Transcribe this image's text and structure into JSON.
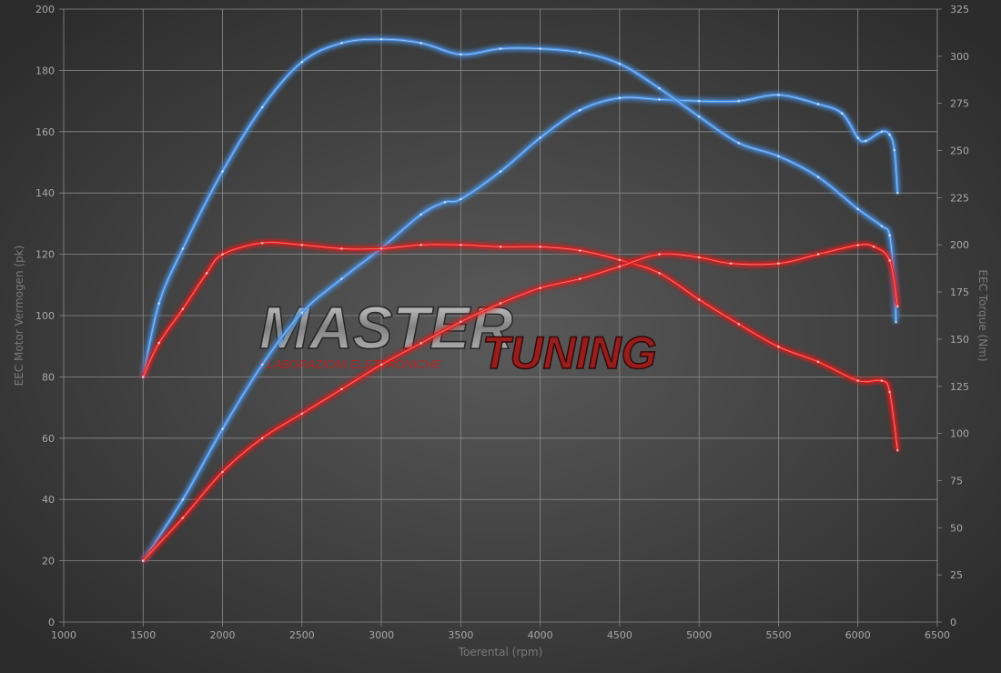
{
  "chart_data": {
    "type": "line",
    "title": "",
    "xlabel": "Toerental (rpm)",
    "ylabel_left": "EEC Motor Vermogen (pk)",
    "ylabel_right": "EEC Torque (Nm)",
    "xlim": [
      1000,
      6500
    ],
    "xticks": [
      1000,
      1500,
      2000,
      2500,
      3000,
      3500,
      4000,
      4500,
      5000,
      5500,
      6000,
      6500
    ],
    "ylim_left": [
      0,
      200
    ],
    "yticks_left": [
      0,
      20,
      40,
      60,
      80,
      100,
      120,
      140,
      160,
      180,
      200
    ],
    "ylim_right": [
      0,
      325
    ],
    "yticks_right": [
      0,
      25,
      50,
      75,
      100,
      125,
      150,
      175,
      200,
      225,
      250,
      275,
      300,
      325
    ],
    "grid": true,
    "colors": {
      "tuned": "#4a8fe0",
      "stock": "#e02020"
    },
    "series": [
      {
        "axis": "left",
        "color_key": "tuned",
        "x": [
          1500,
          1750,
          2000,
          2250,
          2500,
          2750,
          3000,
          3250,
          3400,
          3500,
          3750,
          4000,
          4250,
          4500,
          4750,
          5000,
          5250,
          5500,
          5750,
          5900,
          6000,
          6050,
          6150,
          6200,
          6230,
          6250
        ],
        "y": [
          20,
          40,
          63,
          84,
          101,
          112,
          122,
          133,
          137,
          138,
          147,
          158,
          167,
          171,
          170.5,
          170,
          170,
          172,
          169,
          166,
          158,
          157,
          160,
          159,
          154,
          140
        ]
      },
      {
        "axis": "right",
        "color_key": "tuned",
        "x": [
          1500,
          1600,
          1750,
          2000,
          2250,
          2500,
          2750,
          3000,
          3250,
          3500,
          3750,
          4000,
          4250,
          4500,
          4750,
          5000,
          5250,
          5500,
          5750,
          6000,
          6150,
          6200,
          6230,
          6240
        ],
        "y": [
          130,
          169,
          198,
          239,
          273,
          297,
          307,
          309,
          307,
          301,
          304,
          304,
          302,
          296,
          283,
          268,
          254,
          247,
          236,
          219,
          210,
          205,
          179,
          159
        ]
      },
      {
        "axis": "right",
        "color_key": "stock",
        "x": [
          1500,
          1600,
          1750,
          1900,
          2000,
          2250,
          2500,
          2750,
          3000,
          3250,
          3500,
          3750,
          4000,
          4250,
          4500,
          4750,
          5000,
          5250,
          5500,
          5750,
          6000,
          6150,
          6200,
          6250
        ],
        "y": [
          130,
          148,
          166,
          185,
          195,
          201,
          200,
          198,
          198,
          200,
          200,
          199,
          199,
          197,
          192,
          185,
          171,
          158,
          146,
          138,
          128,
          128,
          122,
          91
        ]
      },
      {
        "axis": "left",
        "color_key": "stock",
        "x": [
          1500,
          1750,
          2000,
          2250,
          2500,
          2750,
          3000,
          3250,
          3500,
          3750,
          4000,
          4250,
          4500,
          4750,
          5000,
          5200,
          5500,
          5750,
          6000,
          6100,
          6200,
          6250
        ],
        "y": [
          20,
          34,
          49,
          60,
          68,
          76,
          84,
          91,
          98,
          104,
          109,
          112,
          116,
          120,
          119,
          117,
          117,
          120,
          123,
          122.5,
          118,
          103
        ]
      }
    ]
  },
  "watermark": {
    "line1": "MASTER",
    "line2": "TUNING",
    "subtitle": "ELABORAZIONI ELETTRONICHE"
  }
}
